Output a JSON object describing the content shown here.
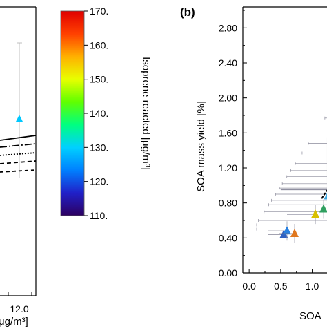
{
  "chart_data": [
    {
      "type": "line",
      "panel": "a",
      "x_tick_labels": [
        "12.0"
      ],
      "xlabel_partial": "μg/m³]",
      "annotations": [
        "cropped error-bar point (cyan triangle)",
        "model curves: solid, dash-dot, dotted, dashed, long-dashed"
      ],
      "point": {
        "x": 12.0,
        "color": "#00c8ff"
      },
      "curve_styles": [
        "solid",
        "dash-dot",
        "dotted",
        "dashed",
        "dashed"
      ]
    },
    {
      "type": "colorbar",
      "label": "Isoprene reacted [μg/m³]",
      "ticks": [
        "170.",
        "160.",
        "150.",
        "140.",
        "130.",
        "120.",
        "110."
      ],
      "range": [
        110,
        170
      ],
      "colormap": [
        "#2d0060",
        "#2020c8",
        "#0080ff",
        "#00d0ff",
        "#00ff80",
        "#60ff00",
        "#e8ff00",
        "#ffb000",
        "#ff4000",
        "#e00000"
      ]
    },
    {
      "type": "scatter",
      "panel": "b",
      "panel_label": "(b)",
      "ylabel": "SOA mass yield [%]",
      "xlabel_partial": "SOA",
      "y_ticks": [
        "0.00",
        "0.40",
        "0.80",
        "1.20",
        "1.60",
        "2.00",
        "2.40",
        "2.80"
      ],
      "x_ticks": [
        "0.0",
        "0.5",
        "1.0"
      ],
      "ylim": [
        0,
        3.0
      ],
      "xlim_visible": [
        -0.1,
        1.3
      ],
      "points": [
        {
          "x": 0.55,
          "y": 0.44,
          "color": "#3060c0",
          "xerr_low": 0.25
        },
        {
          "x": 0.6,
          "y": 0.48,
          "color": "#2880e0",
          "xerr_low": 0.3
        },
        {
          "x": 0.72,
          "y": 0.45,
          "color": "#e07820",
          "xerr_low": 0.25
        },
        {
          "x": 1.05,
          "y": 0.67,
          "color": "#d8c000",
          "xerr_low": 0.45
        },
        {
          "x": 1.18,
          "y": 0.73,
          "color": "#30a060",
          "xerr_low": 0.6
        },
        {
          "x": 1.25,
          "y": 0.88,
          "color": "#40a8e0",
          "xerr_low": 0.7
        },
        {
          "x": 1.3,
          "y": 0.95,
          "color": "#00c0e0",
          "xerr_low": 0.8
        }
      ],
      "error_bar_rows": [
        1.77,
        1.48,
        1.37,
        1.25,
        1.17,
        1.1,
        1.02,
        0.97,
        0.9,
        0.83,
        0.78,
        0.7,
        0.6,
        0.55,
        0.5
      ]
    }
  ]
}
